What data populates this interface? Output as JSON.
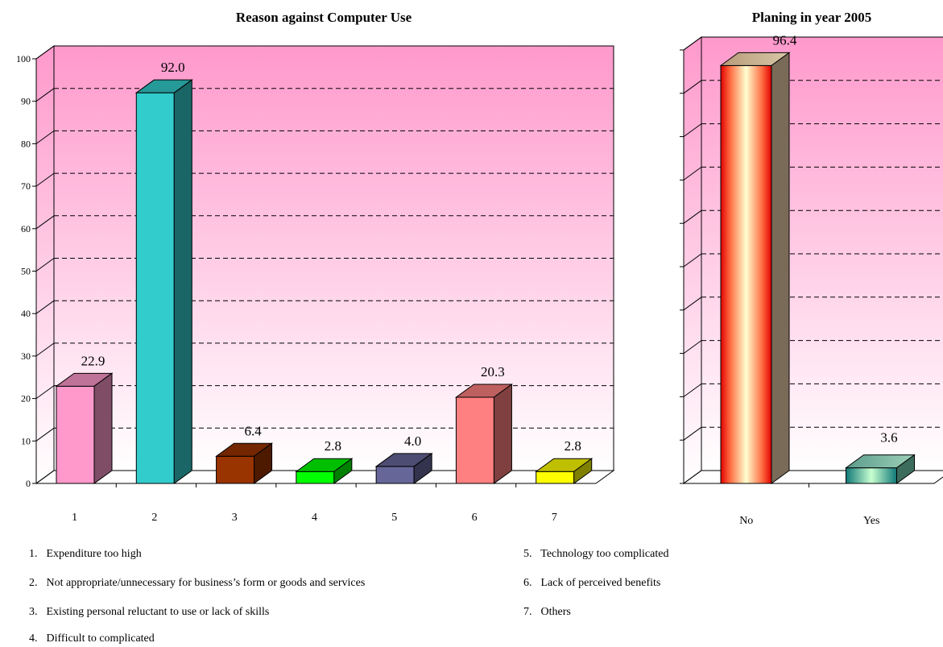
{
  "chart_data": [
    {
      "type": "bar",
      "title": "Reason against Computer Use",
      "categories": [
        "1",
        "2",
        "3",
        "4",
        "5",
        "6",
        "7"
      ],
      "values": [
        22.9,
        92.0,
        6.4,
        2.8,
        4.0,
        20.3,
        2.8
      ],
      "data_labels": [
        "22.9",
        "92.0",
        "6.4",
        "2.8",
        "4.0",
        "20.3",
        "2.8"
      ],
      "ylim": [
        0,
        100
      ],
      "yticks": [
        "0",
        "10",
        "20",
        "30",
        "40",
        "50",
        "60",
        "70",
        "80",
        "90",
        "100"
      ],
      "grid": true,
      "colors": [
        "#FF99CC",
        "#33CCCC",
        "#993300",
        "#00FF00",
        "#666699",
        "#FF8080",
        "#FFFF00"
      ]
    },
    {
      "type": "bar",
      "title": "Planing in year 2005",
      "categories": [
        "No",
        "Yes"
      ],
      "values": [
        96.4,
        3.6
      ],
      "data_labels": [
        "96.4",
        "3.6"
      ],
      "ylim": [
        0,
        100
      ],
      "grid": true,
      "colors": [
        "#FF2020",
        "#20A0A0"
      ]
    }
  ],
  "legend": [
    {
      "num": "1.",
      "text": "Expenditure too high"
    },
    {
      "num": "2.",
      "text": "Not appropriate/unnecessary for business’s form or goods and services"
    },
    {
      "num": "3.",
      "text": "Existing personal reluctant to use or lack of skills"
    },
    {
      "num": "4.",
      "text": "Difficult to complicated"
    },
    {
      "num": "5.",
      "text": "Technology too complicated"
    },
    {
      "num": "6.",
      "text": "Lack of perceived benefits"
    },
    {
      "num": "7.",
      "text": "Others"
    }
  ]
}
